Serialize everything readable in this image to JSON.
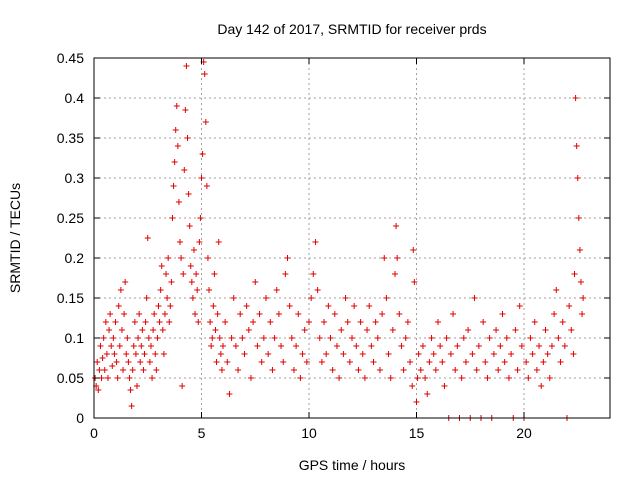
{
  "chart_data": {
    "type": "scatter",
    "title": "Day 142 of 2017, SRMTID for receiver prds",
    "xlabel": "GPS time / hours",
    "ylabel": "SRMTID / TECUs",
    "xlim": [
      0,
      24
    ],
    "ylim": [
      0,
      0.45
    ],
    "x_ticks": [
      0,
      5,
      10,
      15,
      20
    ],
    "x_tick_labels": [
      "0",
      "5",
      "10",
      "15",
      "20"
    ],
    "y_ticks": [
      0,
      0.05,
      0.1,
      0.15,
      0.2,
      0.25,
      0.3,
      0.35,
      0.4,
      0.45
    ],
    "y_tick_labels": [
      "0",
      "0.05",
      "0.1",
      "0.15",
      "0.2",
      "0.25",
      "0.3",
      "0.35",
      "0.4",
      "0.45"
    ],
    "grid": true,
    "marker": "+",
    "marker_color": "#e00000",
    "series": [
      {
        "name": "SRMTID",
        "points": [
          [
            0.05,
            0.05
          ],
          [
            0.1,
            0.04
          ],
          [
            0.15,
            0.07
          ],
          [
            0.2,
            0.035
          ],
          [
            0.25,
            0.06
          ],
          [
            0.3,
            0.09
          ],
          [
            0.35,
            0.05
          ],
          [
            0.4,
            0.075
          ],
          [
            0.45,
            0.1
          ],
          [
            0.5,
            0.06
          ],
          [
            0.55,
            0.12
          ],
          [
            0.6,
            0.08
          ],
          [
            0.65,
            0.05
          ],
          [
            0.7,
            0.11
          ],
          [
            0.75,
            0.13
          ],
          [
            0.8,
            0.09
          ],
          [
            0.85,
            0.065
          ],
          [
            0.9,
            0.1
          ],
          [
            0.95,
            0.08
          ],
          [
            1.0,
            0.12
          ],
          [
            1.05,
            0.07
          ],
          [
            1.1,
            0.05
          ],
          [
            1.15,
            0.14
          ],
          [
            1.2,
            0.09
          ],
          [
            1.25,
            0.16
          ],
          [
            1.3,
            0.11
          ],
          [
            1.35,
            0.06
          ],
          [
            1.4,
            0.13
          ],
          [
            1.45,
            0.17
          ],
          [
            1.5,
            0.08
          ],
          [
            1.55,
            0.1
          ],
          [
            1.6,
            0.07
          ],
          [
            1.65,
            0.05
          ],
          [
            1.7,
            0.035
          ],
          [
            1.75,
            0.015
          ],
          [
            1.8,
            0.06
          ],
          [
            1.85,
            0.09
          ],
          [
            1.9,
            0.12
          ],
          [
            1.95,
            0.08
          ],
          [
            2.0,
            0.04
          ],
          [
            2.05,
            0.1
          ],
          [
            2.1,
            0.13
          ],
          [
            2.15,
            0.07
          ],
          [
            2.2,
            0.09
          ],
          [
            2.25,
            0.11
          ],
          [
            2.3,
            0.06
          ],
          [
            2.35,
            0.08
          ],
          [
            2.4,
            0.12
          ],
          [
            2.45,
            0.15
          ],
          [
            2.5,
            0.225
          ],
          [
            2.55,
            0.1
          ],
          [
            2.6,
            0.07
          ],
          [
            2.65,
            0.09
          ],
          [
            2.7,
            0.05
          ],
          [
            2.75,
            0.11
          ],
          [
            2.8,
            0.13
          ],
          [
            2.85,
            0.08
          ],
          [
            2.9,
            0.06
          ],
          [
            2.95,
            0.1
          ],
          [
            3.0,
            0.14
          ],
          [
            3.05,
            0.12
          ],
          [
            3.1,
            0.16
          ],
          [
            3.15,
            0.19
          ],
          [
            3.2,
            0.11
          ],
          [
            3.25,
            0.08
          ],
          [
            3.3,
            0.13
          ],
          [
            3.35,
            0.18
          ],
          [
            3.4,
            0.15
          ],
          [
            3.45,
            0.2
          ],
          [
            3.5,
            0.12
          ],
          [
            3.55,
            0.14
          ],
          [
            3.6,
            0.17
          ],
          [
            3.65,
            0.25
          ],
          [
            3.7,
            0.29
          ],
          [
            3.75,
            0.32
          ],
          [
            3.8,
            0.36
          ],
          [
            3.85,
            0.39
          ],
          [
            3.9,
            0.34
          ],
          [
            3.95,
            0.27
          ],
          [
            4.0,
            0.22
          ],
          [
            4.05,
            0.2
          ],
          [
            4.1,
            0.04
          ],
          [
            4.15,
            0.18
          ],
          [
            4.2,
            0.31
          ],
          [
            4.25,
            0.385
          ],
          [
            4.3,
            0.44
          ],
          [
            4.35,
            0.35
          ],
          [
            4.4,
            0.28
          ],
          [
            4.45,
            0.24
          ],
          [
            4.5,
            0.19
          ],
          [
            4.55,
            0.17
          ],
          [
            4.6,
            0.15
          ],
          [
            4.65,
            0.21
          ],
          [
            4.7,
            0.13
          ],
          [
            4.75,
            0.18
          ],
          [
            4.8,
            0.16
          ],
          [
            4.85,
            0.12
          ],
          [
            4.9,
            0.22
          ],
          [
            4.95,
            0.25
          ],
          [
            5.0,
            0.3
          ],
          [
            5.05,
            0.33
          ],
          [
            5.1,
            0.445
          ],
          [
            5.15,
            0.43
          ],
          [
            5.2,
            0.37
          ],
          [
            5.25,
            0.29
          ],
          [
            5.3,
            0.2
          ],
          [
            5.35,
            0.16
          ],
          [
            5.4,
            0.12
          ],
          [
            5.45,
            0.09
          ],
          [
            5.5,
            0.1
          ],
          [
            5.55,
            0.14
          ],
          [
            5.6,
            0.18
          ],
          [
            5.65,
            0.11
          ],
          [
            5.7,
            0.07
          ],
          [
            5.75,
            0.13
          ],
          [
            5.8,
            0.22
          ],
          [
            5.85,
            0.1
          ],
          [
            5.9,
            0.08
          ],
          [
            5.95,
            0.06
          ],
          [
            6.0,
            0.09
          ],
          [
            6.1,
            0.12
          ],
          [
            6.2,
            0.07
          ],
          [
            6.3,
            0.03
          ],
          [
            6.4,
            0.1
          ],
          [
            6.5,
            0.15
          ],
          [
            6.6,
            0.09
          ],
          [
            6.7,
            0.06
          ],
          [
            6.8,
            0.13
          ],
          [
            6.9,
            0.1
          ],
          [
            7.0,
            0.08
          ],
          [
            7.1,
            0.14
          ],
          [
            7.2,
            0.11
          ],
          [
            7.3,
            0.05
          ],
          [
            7.4,
            0.12
          ],
          [
            7.5,
            0.17
          ],
          [
            7.6,
            0.09
          ],
          [
            7.7,
            0.13
          ],
          [
            7.8,
            0.07
          ],
          [
            7.9,
            0.1
          ],
          [
            8.0,
            0.15
          ],
          [
            8.1,
            0.08
          ],
          [
            8.2,
            0.12
          ],
          [
            8.3,
            0.06
          ],
          [
            8.4,
            0.1
          ],
          [
            8.5,
            0.16
          ],
          [
            8.6,
            0.13
          ],
          [
            8.7,
            0.09
          ],
          [
            8.8,
            0.07
          ],
          [
            8.9,
            0.18
          ],
          [
            9.0,
            0.2
          ],
          [
            9.1,
            0.14
          ],
          [
            9.2,
            0.1
          ],
          [
            9.3,
            0.06
          ],
          [
            9.4,
            0.09
          ],
          [
            9.5,
            0.13
          ],
          [
            9.6,
            0.05
          ],
          [
            9.7,
            0.08
          ],
          [
            9.8,
            0.11
          ],
          [
            9.9,
            0.07
          ],
          [
            10.0,
            0.12
          ],
          [
            10.1,
            0.15
          ],
          [
            10.2,
            0.18
          ],
          [
            10.3,
            0.22
          ],
          [
            10.4,
            0.16
          ],
          [
            10.5,
            0.1
          ],
          [
            10.6,
            0.07
          ],
          [
            10.7,
            0.12
          ],
          [
            10.8,
            0.08
          ],
          [
            10.9,
            0.14
          ],
          [
            11.0,
            0.1
          ],
          [
            11.1,
            0.06
          ],
          [
            11.2,
            0.13
          ],
          [
            11.3,
            0.09
          ],
          [
            11.4,
            0.05
          ],
          [
            11.5,
            0.11
          ],
          [
            11.6,
            0.08
          ],
          [
            11.7,
            0.15
          ],
          [
            11.8,
            0.12
          ],
          [
            11.9,
            0.07
          ],
          [
            12.0,
            0.1
          ],
          [
            12.1,
            0.14
          ],
          [
            12.2,
            0.09
          ],
          [
            12.3,
            0.06
          ],
          [
            12.4,
            0.12
          ],
          [
            12.5,
            0.08
          ],
          [
            12.6,
            0.05
          ],
          [
            12.7,
            0.11
          ],
          [
            12.8,
            0.14
          ],
          [
            12.9,
            0.09
          ],
          [
            13.0,
            0.07
          ],
          [
            13.1,
            0.12
          ],
          [
            13.2,
            0.1
          ],
          [
            13.3,
            0.06
          ],
          [
            13.4,
            0.13
          ],
          [
            13.5,
            0.2
          ],
          [
            13.6,
            0.15
          ],
          [
            13.7,
            0.08
          ],
          [
            13.8,
            0.05
          ],
          [
            13.9,
            0.11
          ],
          [
            14.0,
            0.18
          ],
          [
            14.05,
            0.24
          ],
          [
            14.1,
            0.2
          ],
          [
            14.2,
            0.13
          ],
          [
            14.3,
            0.09
          ],
          [
            14.4,
            0.06
          ],
          [
            14.5,
            0.1
          ],
          [
            14.6,
            0.12
          ],
          [
            14.7,
            0.07
          ],
          [
            14.8,
            0.04
          ],
          [
            14.85,
            0.21
          ],
          [
            14.9,
            0.17
          ],
          [
            15.0,
            0.02
          ],
          [
            15.05,
            0.05
          ],
          [
            15.1,
            0.08
          ],
          [
            15.2,
            0.06
          ],
          [
            15.3,
            0.09
          ],
          [
            15.4,
            0.05
          ],
          [
            15.5,
            0.03
          ],
          [
            15.6,
            0.07
          ],
          [
            15.7,
            0.1
          ],
          [
            15.8,
            0.08
          ],
          [
            15.9,
            0.06
          ],
          [
            16.0,
            0.12
          ],
          [
            16.1,
            0.09
          ],
          [
            16.2,
            0.07
          ],
          [
            16.3,
            0.04
          ],
          [
            16.4,
            0.1
          ],
          [
            16.5,
            0.0
          ],
          [
            16.6,
            0.08
          ],
          [
            16.7,
            0.13
          ],
          [
            16.8,
            0.06
          ],
          [
            16.9,
            0.09
          ],
          [
            17.0,
            0.0
          ],
          [
            17.1,
            0.05
          ],
          [
            17.2,
            0.1
          ],
          [
            17.3,
            0.07
          ],
          [
            17.4,
            0.11
          ],
          [
            17.5,
            0.0
          ],
          [
            17.6,
            0.08
          ],
          [
            17.7,
            0.15
          ],
          [
            17.8,
            0.06
          ],
          [
            17.9,
            0.09
          ],
          [
            18.0,
            0.0
          ],
          [
            18.1,
            0.12
          ],
          [
            18.2,
            0.07
          ],
          [
            18.3,
            0.05
          ],
          [
            18.4,
            0.1
          ],
          [
            18.5,
            0.0
          ],
          [
            18.6,
            0.08
          ],
          [
            18.7,
            0.11
          ],
          [
            18.8,
            0.06
          ],
          [
            18.9,
            0.09
          ],
          [
            19.0,
            0.13
          ],
          [
            19.1,
            0.07
          ],
          [
            19.2,
            0.1
          ],
          [
            19.3,
            0.05
          ],
          [
            19.4,
            0.08
          ],
          [
            19.5,
            0.0
          ],
          [
            19.6,
            0.11
          ],
          [
            19.7,
            0.06
          ],
          [
            19.8,
            0.14
          ],
          [
            19.9,
            0.09
          ],
          [
            20.0,
            0.0
          ],
          [
            20.1,
            0.07
          ],
          [
            20.2,
            0.05
          ],
          [
            20.3,
            0.1
          ],
          [
            20.4,
            0.08
          ],
          [
            20.5,
            0.12
          ],
          [
            20.6,
            0.06
          ],
          [
            20.7,
            0.09
          ],
          [
            20.8,
            0.04
          ],
          [
            20.9,
            0.07
          ],
          [
            21.0,
            0.11
          ],
          [
            21.1,
            0.08
          ],
          [
            21.2,
            0.05
          ],
          [
            21.3,
            0.09
          ],
          [
            21.4,
            0.13
          ],
          [
            21.5,
            0.16
          ],
          [
            21.6,
            0.1
          ],
          [
            21.7,
            0.07
          ],
          [
            21.8,
            0.12
          ],
          [
            21.9,
            0.09
          ],
          [
            22.0,
            0.0
          ],
          [
            22.1,
            0.14
          ],
          [
            22.2,
            0.11
          ],
          [
            22.3,
            0.08
          ],
          [
            22.35,
            0.18
          ],
          [
            22.4,
            0.4
          ],
          [
            22.45,
            0.34
          ],
          [
            22.5,
            0.3
          ],
          [
            22.55,
            0.25
          ],
          [
            22.6,
            0.21
          ],
          [
            22.65,
            0.17
          ],
          [
            22.7,
            0.13
          ],
          [
            22.75,
            0.15
          ]
        ]
      }
    ]
  }
}
